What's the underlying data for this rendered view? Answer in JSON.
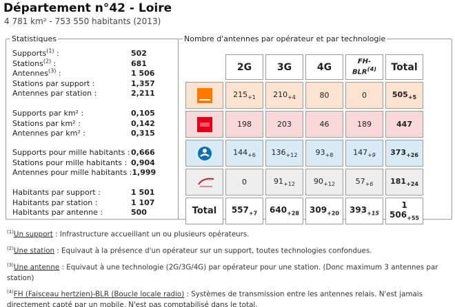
{
  "header": {
    "title": "Département n°42 - Loire",
    "subtitle": "4 781 km² - 753 550 habitants (2013)"
  },
  "stats": {
    "legend": "Statistiques",
    "groups": [
      [
        {
          "label": "Supports",
          "sup": "(1)",
          "suffix": " :",
          "value": "502"
        },
        {
          "label": "Stations",
          "sup": "(2)",
          "suffix": " :",
          "value": "681"
        },
        {
          "label": "Antennes",
          "sup": "(3)",
          "suffix": " :",
          "value": "1 506"
        },
        {
          "label": "Stations par support :",
          "sup": "",
          "suffix": "",
          "value": "1,357"
        },
        {
          "label": "Antennes par station :",
          "sup": "",
          "suffix": "",
          "value": "2,211"
        }
      ],
      [
        {
          "label": "Supports par km² :",
          "sup": "",
          "suffix": "",
          "value": "0,105"
        },
        {
          "label": "Stations par km² :",
          "sup": "",
          "suffix": "",
          "value": "0,142"
        },
        {
          "label": "Antennes par km² :",
          "sup": "",
          "suffix": "",
          "value": "0,315"
        }
      ],
      [
        {
          "label": "Supports pour mille habitants :",
          "sup": "",
          "suffix": "",
          "value": "0,666"
        },
        {
          "label": "Stations pour mille habitants :",
          "sup": "",
          "suffix": "",
          "value": "0,904"
        },
        {
          "label": "Antennes pour mille habitants :",
          "sup": "",
          "suffix": "",
          "value": "1,999"
        }
      ],
      [
        {
          "label": "Habitants par support :",
          "sup": "",
          "suffix": "",
          "value": "1 501"
        },
        {
          "label": "Habitants par station :",
          "sup": "",
          "suffix": "",
          "value": "1 107"
        },
        {
          "label": "Habitants par antenne :",
          "sup": "",
          "suffix": "",
          "value": "500"
        }
      ]
    ]
  },
  "antennas": {
    "legend": "Nombre d'antennes par opérateur et par technologie",
    "headers": [
      "2G",
      "3G",
      "4G",
      "FH-BLR",
      "Total"
    ],
    "fh_sup": "(4)",
    "rows": [
      {
        "operator": "Orange",
        "icon": "orange-logo-icon",
        "color": "#ff7900",
        "cells": [
          {
            "v": "215",
            "d": "+1"
          },
          {
            "v": "210",
            "d": "+4"
          },
          {
            "v": "80",
            "d": ""
          },
          {
            "v": "0",
            "d": ""
          }
        ],
        "total": {
          "v": "505",
          "d": "+5"
        }
      },
      {
        "operator": "SFR",
        "icon": "sfr-logo-icon",
        "color": "#e2001a",
        "cells": [
          {
            "v": "198",
            "d": ""
          },
          {
            "v": "203",
            "d": ""
          },
          {
            "v": "46",
            "d": ""
          },
          {
            "v": "189",
            "d": ""
          }
        ],
        "total": {
          "v": "447",
          "d": ""
        }
      },
      {
        "operator": "Bouygues Telecom",
        "icon": "bouygues-logo-icon",
        "color": "#0b6fb5",
        "cells": [
          {
            "v": "144",
            "d": "+6"
          },
          {
            "v": "136",
            "d": "+12"
          },
          {
            "v": "93",
            "d": "+8"
          },
          {
            "v": "147",
            "d": "+9"
          }
        ],
        "total": {
          "v": "373",
          "d": "+26"
        }
      },
      {
        "operator": "Free mobile",
        "icon": "free-logo-icon",
        "color": "#cd1e25",
        "cells": [
          {
            "v": "0",
            "d": ""
          },
          {
            "v": "91",
            "d": "+12"
          },
          {
            "v": "90",
            "d": "+12"
          },
          {
            "v": "57",
            "d": "+6"
          }
        ],
        "total": {
          "v": "181",
          "d": "+24"
        }
      }
    ],
    "totals": {
      "label": "Total",
      "cells": [
        {
          "v": "557",
          "d": "+7"
        },
        {
          "v": "640",
          "d": "+28"
        },
        {
          "v": "309",
          "d": "+20"
        },
        {
          "v": "393",
          "d": "+15"
        }
      ],
      "total": {
        "v": "1 506",
        "d": "+55"
      }
    }
  },
  "footnotes": [
    {
      "num": "(1)",
      "term": "Un support",
      "text": " : Infrastructure accueillant un ou plusieurs opérateurs."
    },
    {
      "num": "(2)",
      "term": "Une station",
      "text": " : Equivaut à la présence d'un opérateur sur un support, toutes technologies confondues."
    },
    {
      "num": "(3)",
      "term": "Une antenne",
      "text": " : Equivaut à une technologie (2G/3G/4G) par opérateur pour une station. (Donc maximum 3 antennes par station)"
    },
    {
      "num": "(4)",
      "term": "FH (Faisceau hertzien)-BLR (Boucle locale radio)",
      "text": " : Systèmes de transmission entre les antennes relais. N'est jamais directement capté par un mobile. N'est pas comptabilisé dans le total."
    }
  ]
}
